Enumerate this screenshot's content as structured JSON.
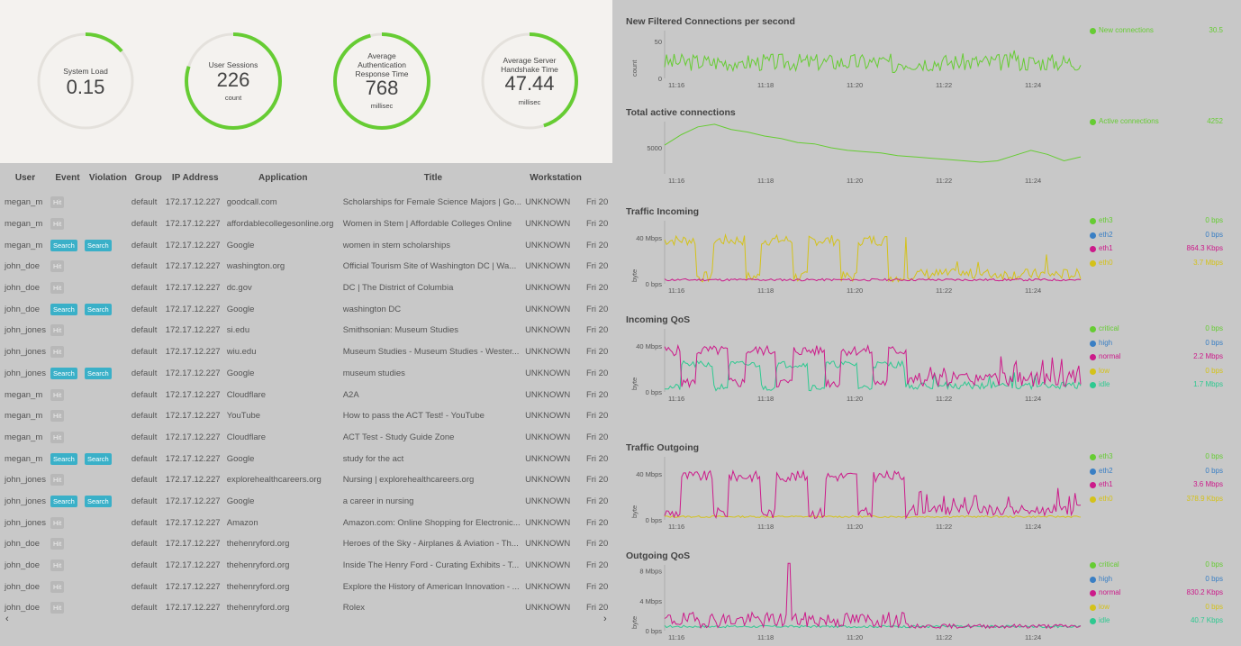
{
  "gauges": [
    {
      "label": "System Load",
      "value": "0.15",
      "unit": "",
      "fraction": 0.14
    },
    {
      "label": "User Sessions",
      "value": "226",
      "unit": "count",
      "fraction": 0.8
    },
    {
      "label": "Average Authentication Response Time",
      "value": "768",
      "unit": "millisec",
      "fraction": 0.96
    },
    {
      "label": "Average Server Handshake Time",
      "value": "47.44",
      "unit": "millisec",
      "fraction": 0.45
    }
  ],
  "table": {
    "columns": [
      "User",
      "Event",
      "Violation",
      "Group",
      "IP Address",
      "Application",
      "Title",
      "Workstation",
      ""
    ],
    "rows": [
      {
        "user": "megan_m",
        "event": "Hit",
        "violation": "",
        "group": "default",
        "ip": "172.17.12.227",
        "app": "goodcall.com",
        "title": "Scholarships for Female Science Majors | Go...",
        "ws": "UNKNOWN",
        "date": "Fri 20"
      },
      {
        "user": "megan_m",
        "event": "Hit",
        "violation": "",
        "group": "default",
        "ip": "172.17.12.227",
        "app": "affordablecollegesonline.org",
        "title": "Women in Stem | Affordable Colleges Online",
        "ws": "UNKNOWN",
        "date": "Fri 20"
      },
      {
        "user": "megan_m",
        "event": "Search",
        "violation": "Search",
        "group": "default",
        "ip": "172.17.12.227",
        "app": "Google",
        "title": "women in stem scholarships",
        "ws": "UNKNOWN",
        "date": "Fri 20"
      },
      {
        "user": "john_doe",
        "event": "Hit",
        "violation": "",
        "group": "default",
        "ip": "172.17.12.227",
        "app": "washington.org",
        "title": "Official Tourism Site of Washington DC | Wa...",
        "ws": "UNKNOWN",
        "date": "Fri 20"
      },
      {
        "user": "john_doe",
        "event": "Hit",
        "violation": "",
        "group": "default",
        "ip": "172.17.12.227",
        "app": "dc.gov",
        "title": "DC | The District of Columbia",
        "ws": "UNKNOWN",
        "date": "Fri 20"
      },
      {
        "user": "john_doe",
        "event": "Search",
        "violation": "Search",
        "group": "default",
        "ip": "172.17.12.227",
        "app": "Google",
        "title": "washington DC",
        "ws": "UNKNOWN",
        "date": "Fri 20"
      },
      {
        "user": "john_jones",
        "event": "Hit",
        "violation": "",
        "group": "default",
        "ip": "172.17.12.227",
        "app": "si.edu",
        "title": "Smithsonian: Museum Studies",
        "ws": "UNKNOWN",
        "date": "Fri 20"
      },
      {
        "user": "john_jones",
        "event": "Hit",
        "violation": "",
        "group": "default",
        "ip": "172.17.12.227",
        "app": "wiu.edu",
        "title": "Museum Studies - Museum Studies - Wester...",
        "ws": "UNKNOWN",
        "date": "Fri 20"
      },
      {
        "user": "john_jones",
        "event": "Search",
        "violation": "Search",
        "group": "default",
        "ip": "172.17.12.227",
        "app": "Google",
        "title": "museum studies",
        "ws": "UNKNOWN",
        "date": "Fri 20"
      },
      {
        "user": "megan_m",
        "event": "Hit",
        "violation": "",
        "group": "default",
        "ip": "172.17.12.227",
        "app": "Cloudflare",
        "title": "A2A",
        "ws": "UNKNOWN",
        "date": "Fri 20"
      },
      {
        "user": "megan_m",
        "event": "Hit",
        "violation": "",
        "group": "default",
        "ip": "172.17.12.227",
        "app": "YouTube",
        "title": "How to pass the ACT Test! - YouTube",
        "ws": "UNKNOWN",
        "date": "Fri 20"
      },
      {
        "user": "megan_m",
        "event": "Hit",
        "violation": "",
        "group": "default",
        "ip": "172.17.12.227",
        "app": "Cloudflare",
        "title": "ACT Test - Study Guide Zone",
        "ws": "UNKNOWN",
        "date": "Fri 20"
      },
      {
        "user": "megan_m",
        "event": "Search",
        "violation": "Search",
        "group": "default",
        "ip": "172.17.12.227",
        "app": "Google",
        "title": "study for the act",
        "ws": "UNKNOWN",
        "date": "Fri 20"
      },
      {
        "user": "john_jones",
        "event": "Hit",
        "violation": "",
        "group": "default",
        "ip": "172.17.12.227",
        "app": "explorehealthcareers.org",
        "title": "Nursing | explorehealthcareers.org",
        "ws": "UNKNOWN",
        "date": "Fri 20"
      },
      {
        "user": "john_jones",
        "event": "Search",
        "violation": "Search",
        "group": "default",
        "ip": "172.17.12.227",
        "app": "Google",
        "title": "a career in nursing",
        "ws": "UNKNOWN",
        "date": "Fri 20"
      },
      {
        "user": "john_jones",
        "event": "Hit",
        "violation": "",
        "group": "default",
        "ip": "172.17.12.227",
        "app": "Amazon",
        "title": "Amazon.com: Online Shopping for Electronic...",
        "ws": "UNKNOWN",
        "date": "Fri 20"
      },
      {
        "user": "john_doe",
        "event": "Hit",
        "violation": "",
        "group": "default",
        "ip": "172.17.12.227",
        "app": "thehenryford.org",
        "title": "Heroes of the Sky - Airplanes & Aviation - Th...",
        "ws": "UNKNOWN",
        "date": "Fri 20"
      },
      {
        "user": "john_doe",
        "event": "Hit",
        "violation": "",
        "group": "default",
        "ip": "172.17.12.227",
        "app": "thehenryford.org",
        "title": "Inside The Henry Ford - Curating Exhibits - T...",
        "ws": "UNKNOWN",
        "date": "Fri 20"
      },
      {
        "user": "john_doe",
        "event": "Hit",
        "violation": "",
        "group": "default",
        "ip": "172.17.12.227",
        "app": "thehenryford.org",
        "title": "Explore the History of American Innovation - ...",
        "ws": "UNKNOWN",
        "date": "Fri 20"
      },
      {
        "user": "john_doe",
        "event": "Hit",
        "violation": "",
        "group": "default",
        "ip": "172.17.12.227",
        "app": "thehenryford.org",
        "title": "Rolex",
        "ws": "UNKNOWN",
        "date": "Fri 20"
      }
    ],
    "scroll_left": "‹",
    "scroll_right": "›"
  },
  "colors": {
    "green": "#66cc33",
    "blue": "#3a7fc4",
    "magenta": "#cc1a8a",
    "yellow": "#d4c21a",
    "teal": "#2ec990",
    "gauge_track": "#e4e1dc",
    "gauge_fill": "#66cc33"
  },
  "time_ticks": [
    "11:16",
    "11:18",
    "11:20",
    "11:22",
    "11:24"
  ],
  "charts": [
    {
      "key": "new_conn",
      "title": "New Filtered Connections per second",
      "ylabel": "count",
      "yticks": [
        {
          "label": "50",
          "value": 50
        },
        {
          "label": "0",
          "value": 0
        }
      ],
      "ymax": 65,
      "legend": [
        {
          "name": "New connections",
          "value": "30.5",
          "color": "green"
        }
      ],
      "series": [
        {
          "color": "green",
          "baseline": 22,
          "amp": 12,
          "spikes": [
            [
              0.05,
              18
            ],
            [
              0.18,
              22
            ],
            [
              0.55,
              8
            ],
            [
              0.84,
              38
            ],
            [
              0.9,
              24
            ]
          ],
          "seed": 3,
          "trend": []
        }
      ]
    },
    {
      "key": "total_conn",
      "title": "Total active connections",
      "ylabel": "",
      "yticks": [
        {
          "label": "5000",
          "value": 5000
        }
      ],
      "ymax": 6000,
      "ymin": 4000,
      "legend": [
        {
          "name": "Active connections",
          "value": "4252",
          "color": "green"
        }
      ],
      "series": [
        {
          "color": "green",
          "smooth": true,
          "points": [
            5100,
            5500,
            5800,
            5900,
            5700,
            5600,
            5450,
            5350,
            5200,
            5150,
            5000,
            4900,
            4850,
            4800,
            4700,
            4650,
            4600,
            4550,
            4500,
            4450,
            4500,
            4700,
            4900,
            4750,
            4500,
            4650
          ]
        }
      ]
    },
    {
      "key": "traffic_in",
      "title": "Traffic Incoming",
      "ylabel": "byte",
      "yticks": [
        {
          "label": "40 Mbps",
          "value": 40
        },
        {
          "label": "0 bps",
          "value": 0
        }
      ],
      "ymax": 55,
      "legend": [
        {
          "name": "eth3",
          "value": "0 bps",
          "color": "green"
        },
        {
          "name": "eth2",
          "value": "0 bps",
          "color": "blue"
        },
        {
          "name": "eth1",
          "value": "864.3 Kbps",
          "color": "magenta"
        },
        {
          "name": "eth0",
          "value": "3.7 Mbps",
          "color": "yellow"
        }
      ],
      "series": [
        {
          "color": "yellow",
          "square": true,
          "seed": 7,
          "high": 38,
          "low": 6,
          "cut": 0.58
        },
        {
          "color": "magenta",
          "flat": 2.5,
          "seed": 11
        }
      ]
    },
    {
      "key": "in_qos",
      "title": "Incoming QoS",
      "ylabel": "byte",
      "yticks": [
        {
          "label": "40 Mbps",
          "value": 40
        },
        {
          "label": "0 bps",
          "value": 0
        }
      ],
      "ymax": 55,
      "legend": [
        {
          "name": "critical",
          "value": "0 bps",
          "color": "green"
        },
        {
          "name": "high",
          "value": "0 bps",
          "color": "blue"
        },
        {
          "name": "normal",
          "value": "2.2 Mbps",
          "color": "magenta"
        },
        {
          "name": "low",
          "value": "0 bps",
          "color": "yellow"
        },
        {
          "name": "idle",
          "value": "1.7 Mbps",
          "color": "teal"
        }
      ],
      "series": [
        {
          "color": "teal",
          "square": true,
          "seed": 21,
          "high": 24,
          "low": 4,
          "cut": 0.58
        },
        {
          "color": "magenta",
          "square": true,
          "seed": 5,
          "high": 36,
          "low": 8,
          "cut": 0.58
        }
      ]
    },
    {
      "key": "traffic_out",
      "title": "Traffic Outgoing",
      "ylabel": "byte",
      "yticks": [
        {
          "label": "40 Mbps",
          "value": 40
        },
        {
          "label": "0 bps",
          "value": 0
        }
      ],
      "ymax": 55,
      "legend": [
        {
          "name": "eth3",
          "value": "0 bps",
          "color": "green"
        },
        {
          "name": "eth2",
          "value": "0 bps",
          "color": "blue"
        },
        {
          "name": "eth1",
          "value": "3.6 Mbps",
          "color": "magenta"
        },
        {
          "name": "eth0",
          "value": "378.9 Kbps",
          "color": "yellow"
        }
      ],
      "series": [
        {
          "color": "yellow",
          "flat": 2,
          "seed": 13
        },
        {
          "color": "magenta",
          "square": true,
          "seed": 9,
          "high": 38,
          "low": 6,
          "cut": 0.58
        }
      ]
    },
    {
      "key": "out_qos",
      "title": "Outgoing QoS",
      "ylabel": "byte",
      "yticks": [
        {
          "label": "8 Mbps",
          "value": 8
        },
        {
          "label": "4 Mbps",
          "value": 4
        },
        {
          "label": "0 bps",
          "value": 0
        }
      ],
      "ymax": 8.8,
      "legend": [
        {
          "name": "critical",
          "value": "0 bps",
          "color": "green"
        },
        {
          "name": "high",
          "value": "0 bps",
          "color": "blue"
        },
        {
          "name": "normal",
          "value": "830.2 Kbps",
          "color": "magenta"
        },
        {
          "name": "low",
          "value": "0 bps",
          "color": "yellow"
        },
        {
          "name": "idle",
          "value": "40.7 Kbps",
          "color": "teal"
        }
      ],
      "series": [
        {
          "color": "teal",
          "flat": 0.4,
          "seed": 17
        },
        {
          "color": "magenta",
          "noise": true,
          "seed": 19,
          "high": 1.6,
          "low": 0.4,
          "cut": 0.58,
          "spikes": [
            [
              0.3,
              9
            ]
          ]
        }
      ]
    }
  ]
}
